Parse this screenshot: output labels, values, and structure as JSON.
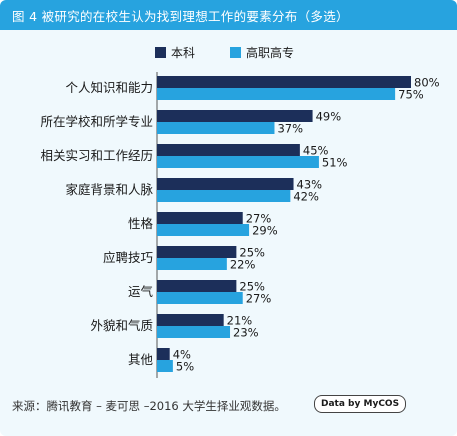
{
  "header": {
    "title": "图 4  被研究的在校生认为找到理想工作的要素分布（多选）"
  },
  "chart_data": {
    "type": "bar",
    "orientation": "horizontal",
    "categories": [
      "个人知识和能力",
      "所在学校和所学专业",
      "相关实习和工作经历",
      "家庭背景和人脉",
      "性格",
      "应聘技巧",
      "运气",
      "外貌和气质",
      "其他"
    ],
    "series": [
      {
        "name": "本科",
        "color": "#1c2f5a",
        "values": [
          80,
          49,
          45,
          43,
          27,
          25,
          25,
          21,
          4
        ]
      },
      {
        "name": "高职高专",
        "color": "#27a3df",
        "values": [
          75,
          37,
          51,
          42,
          29,
          22,
          27,
          23,
          5
        ]
      }
    ],
    "value_suffix": "%",
    "xlim": [
      0,
      80
    ],
    "legend_position": "top-center",
    "grid": false
  },
  "footer": {
    "source": "来源：腾讯教育 – 麦可思 –2016 大学生择业观数据。",
    "brand": "Data by MyCOS"
  }
}
